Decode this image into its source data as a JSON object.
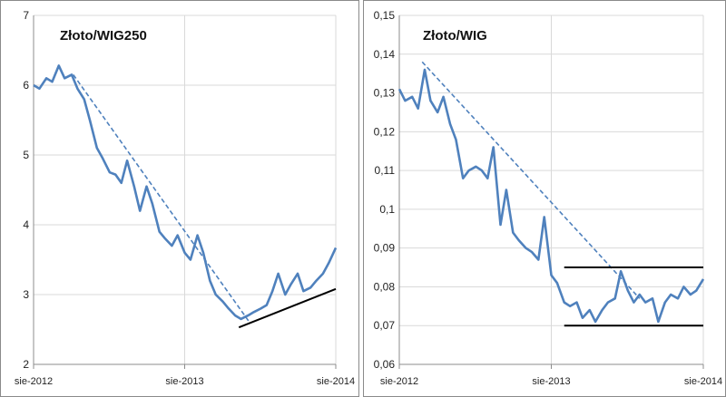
{
  "colors": {
    "series": "#4f81bd",
    "trend_dashed": "#4f81bd",
    "support_line": "#000000",
    "grid": "#d9d9d9",
    "frame": "#8a8a8a"
  },
  "chart_data": [
    {
      "type": "line",
      "title": "Złoto/WIG250",
      "xlabel": "",
      "ylabel": "",
      "x_ticks": [
        "sie-2012",
        "sie-2013",
        "sie-2014"
      ],
      "x_range": [
        "2012-08",
        "2014-08"
      ],
      "y_ticks": [
        "2",
        "3",
        "4",
        "5",
        "6",
        "7"
      ],
      "ylim": [
        2,
        7
      ],
      "grid": "vertical and horizontal",
      "series": [
        {
          "points": [
            [
              "2012-08-01",
              6.0
            ],
            [
              "2012-08-15",
              5.95
            ],
            [
              "2012-09-01",
              6.1
            ],
            [
              "2012-09-15",
              6.05
            ],
            [
              "2012-10-01",
              6.28
            ],
            [
              "2012-10-15",
              6.1
            ],
            [
              "2012-11-01",
              6.15
            ],
            [
              "2012-11-15",
              5.95
            ],
            [
              "2012-12-01",
              5.8
            ],
            [
              "2012-12-15",
              5.5
            ],
            [
              "2013-01-01",
              5.1
            ],
            [
              "2013-01-15",
              4.95
            ],
            [
              "2013-02-01",
              4.75
            ],
            [
              "2013-02-15",
              4.72
            ],
            [
              "2013-03-01",
              4.6
            ],
            [
              "2013-03-15",
              4.92
            ],
            [
              "2013-04-01",
              4.55
            ],
            [
              "2013-04-15",
              4.2
            ],
            [
              "2013-05-01",
              4.55
            ],
            [
              "2013-05-15",
              4.3
            ],
            [
              "2013-06-01",
              3.9
            ],
            [
              "2013-06-15",
              3.8
            ],
            [
              "2013-07-01",
              3.7
            ],
            [
              "2013-07-15",
              3.85
            ],
            [
              "2013-08-01",
              3.6
            ],
            [
              "2013-08-15",
              3.5
            ],
            [
              "2013-09-01",
              3.85
            ],
            [
              "2013-09-15",
              3.6
            ],
            [
              "2013-10-01",
              3.2
            ],
            [
              "2013-10-15",
              3.0
            ],
            [
              "2013-11-01",
              2.9
            ],
            [
              "2013-11-15",
              2.8
            ],
            [
              "2013-12-01",
              2.7
            ],
            [
              "2013-12-15",
              2.65
            ],
            [
              "2014-01-01",
              2.7
            ],
            [
              "2014-01-15",
              2.75
            ],
            [
              "2014-02-01",
              2.8
            ],
            [
              "2014-02-15",
              2.85
            ],
            [
              "2014-03-01",
              3.05
            ],
            [
              "2014-03-15",
              3.3
            ],
            [
              "2014-04-01",
              3.0
            ],
            [
              "2014-04-15",
              3.15
            ],
            [
              "2014-05-01",
              3.3
            ],
            [
              "2014-05-15",
              3.05
            ],
            [
              "2014-06-01",
              3.1
            ],
            [
              "2014-06-15",
              3.2
            ],
            [
              "2014-07-01",
              3.3
            ],
            [
              "2014-07-15",
              3.45
            ],
            [
              "2014-08-01",
              3.67
            ]
          ]
        }
      ],
      "trendlines": [
        {
          "style": "dashed",
          "from": [
            "2012-11-05",
            6.15
          ],
          "to": [
            "2014-01-05",
            2.6
          ]
        },
        {
          "style": "solid",
          "from": [
            "2013-12-10",
            2.53
          ],
          "to": [
            "2014-08-01",
            3.08
          ]
        }
      ]
    },
    {
      "type": "line",
      "title": "Złoto/WIG",
      "xlabel": "",
      "ylabel": "",
      "x_ticks": [
        "sie-2012",
        "sie-2013",
        "sie-2014"
      ],
      "x_range": [
        "2012-08",
        "2014-08"
      ],
      "y_ticks": [
        "0,06",
        "0,07",
        "0,08",
        "0,09",
        "0,1",
        "0,11",
        "0,12",
        "0,13",
        "0,14",
        "0,15"
      ],
      "ylim": [
        0.06,
        0.15
      ],
      "grid": "vertical and horizontal",
      "series": [
        {
          "points": [
            [
              "2012-08-01",
              0.131
            ],
            [
              "2012-08-15",
              0.128
            ],
            [
              "2012-09-01",
              0.129
            ],
            [
              "2012-09-15",
              0.126
            ],
            [
              "2012-10-01",
              0.136
            ],
            [
              "2012-10-15",
              0.128
            ],
            [
              "2012-11-01",
              0.125
            ],
            [
              "2012-11-15",
              0.129
            ],
            [
              "2012-12-01",
              0.122
            ],
            [
              "2012-12-15",
              0.118
            ],
            [
              "2013-01-01",
              0.108
            ],
            [
              "2013-01-15",
              0.11
            ],
            [
              "2013-02-01",
              0.111
            ],
            [
              "2013-02-15",
              0.11
            ],
            [
              "2013-03-01",
              0.108
            ],
            [
              "2013-03-15",
              0.116
            ],
            [
              "2013-04-01",
              0.096
            ],
            [
              "2013-04-15",
              0.105
            ],
            [
              "2013-05-01",
              0.094
            ],
            [
              "2013-05-15",
              0.092
            ],
            [
              "2013-06-01",
              0.09
            ],
            [
              "2013-06-15",
              0.089
            ],
            [
              "2013-07-01",
              0.087
            ],
            [
              "2013-07-15",
              0.098
            ],
            [
              "2013-08-01",
              0.083
            ],
            [
              "2013-08-15",
              0.081
            ],
            [
              "2013-09-01",
              0.076
            ],
            [
              "2013-09-15",
              0.075
            ],
            [
              "2013-10-01",
              0.076
            ],
            [
              "2013-10-15",
              0.072
            ],
            [
              "2013-11-01",
              0.074
            ],
            [
              "2013-11-15",
              0.071
            ],
            [
              "2013-12-01",
              0.074
            ],
            [
              "2013-12-15",
              0.076
            ],
            [
              "2014-01-01",
              0.077
            ],
            [
              "2014-01-15",
              0.084
            ],
            [
              "2014-02-01",
              0.079
            ],
            [
              "2014-02-15",
              0.076
            ],
            [
              "2014-03-01",
              0.078
            ],
            [
              "2014-03-15",
              0.076
            ],
            [
              "2014-04-01",
              0.077
            ],
            [
              "2014-04-15",
              0.071
            ],
            [
              "2014-05-01",
              0.076
            ],
            [
              "2014-05-15",
              0.078
            ],
            [
              "2014-06-01",
              0.077
            ],
            [
              "2014-06-15",
              0.08
            ],
            [
              "2014-07-01",
              0.078
            ],
            [
              "2014-07-15",
              0.079
            ],
            [
              "2014-08-01",
              0.082
            ]
          ]
        }
      ],
      "trendlines": [
        {
          "style": "dashed",
          "from": [
            "2012-09-25",
            0.138
          ],
          "to": [
            "2014-03-01",
            0.077
          ]
        },
        {
          "style": "solid",
          "from": [
            "2013-09-01",
            0.085
          ],
          "to": [
            "2014-08-01",
            0.085
          ]
        },
        {
          "style": "solid",
          "from": [
            "2013-09-01",
            0.07
          ],
          "to": [
            "2014-08-01",
            0.07
          ]
        }
      ]
    }
  ]
}
